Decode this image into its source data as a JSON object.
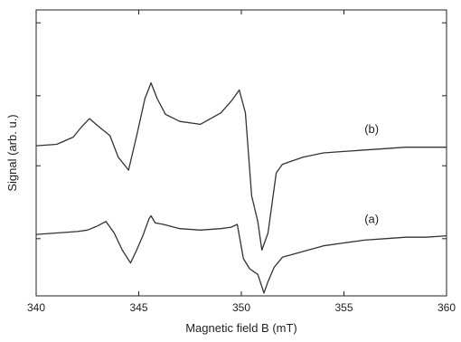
{
  "chart_data": {
    "type": "line",
    "xlabel": "Magnetic field B (mT)",
    "ylabel": "Signal (arb. u.)",
    "xlim": [
      340,
      360
    ],
    "x_ticks": [
      340,
      345,
      350,
      355,
      360
    ],
    "x_tick_labels": [
      "340",
      "345",
      "350",
      "355",
      "360"
    ],
    "ylim": [
      0,
      10
    ],
    "y_ticks_unlabeled": [
      2.0,
      4.55,
      7.0,
      9.55
    ],
    "grid": false,
    "legend": "none",
    "series": [
      {
        "name": "(a)",
        "annotation": "(a)",
        "annotation_at": [
          356.0,
          2.55
        ],
        "x": [
          340,
          341,
          342,
          342.5,
          343,
          343.4,
          343.8,
          344.2,
          344.6,
          344.9,
          345.2,
          345.5,
          345.6,
          345.8,
          346.2,
          347,
          348,
          349,
          349.5,
          349.8,
          350.1,
          350.4,
          350.8,
          351.1,
          351.3,
          351.6,
          352,
          353,
          354,
          355,
          356,
          357,
          358,
          359,
          360
        ],
        "y": [
          2.15,
          2.2,
          2.25,
          2.3,
          2.45,
          2.6,
          2.2,
          1.6,
          1.15,
          1.6,
          2.1,
          2.7,
          2.8,
          2.55,
          2.5,
          2.35,
          2.3,
          2.35,
          2.4,
          2.5,
          1.3,
          0.95,
          0.75,
          0.1,
          0.5,
          1.0,
          1.35,
          1.55,
          1.75,
          1.85,
          1.95,
          2.0,
          2.05,
          2.05,
          2.1
        ]
      },
      {
        "name": "(b)",
        "annotation": "(b)",
        "annotation_at": [
          356.0,
          5.7
        ],
        "x": [
          340,
          341,
          341.8,
          342.2,
          342.6,
          343,
          343.6,
          344,
          344.5,
          344.9,
          345.3,
          345.6,
          345.9,
          346.3,
          347,
          348,
          349,
          349.5,
          349.9,
          350.2,
          350.5,
          350.8,
          351.0,
          351.3,
          351.7,
          352,
          353,
          354,
          355,
          356,
          357,
          358,
          359,
          360
        ],
        "y": [
          5.25,
          5.3,
          5.55,
          5.9,
          6.2,
          5.95,
          5.6,
          4.85,
          4.4,
          5.6,
          6.9,
          7.45,
          6.9,
          6.35,
          6.1,
          6.0,
          6.4,
          6.8,
          7.2,
          6.4,
          3.5,
          2.6,
          1.6,
          2.2,
          4.3,
          4.6,
          4.85,
          5.0,
          5.05,
          5.1,
          5.15,
          5.2,
          5.2,
          5.2
        ]
      }
    ]
  },
  "colors": {
    "axis": "#222222",
    "trace": "#333333",
    "background": "#ffffff"
  }
}
